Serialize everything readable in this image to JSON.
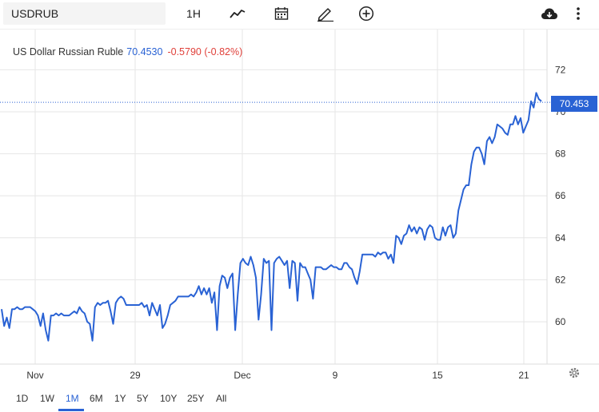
{
  "toolbar": {
    "symbol": "USDRUB",
    "interval": "1H",
    "icons": [
      "chart-type-line-icon",
      "calendar-icon",
      "pencil-draw-icon",
      "add-circle-icon",
      "cloud-download-icon",
      "more-vertical-icon"
    ]
  },
  "legend": {
    "name": "US Dollar Russian Ruble",
    "price": "70.4530",
    "change": "-0.5790 (-0.82%)"
  },
  "price_tag": "70.453",
  "ranges": [
    "1D",
    "1W",
    "1M",
    "6M",
    "1Y",
    "5Y",
    "10Y",
    "25Y",
    "All"
  ],
  "active_range": "1M",
  "colors": {
    "line": "#2962d4",
    "negative": "#e0403a",
    "grid": "#e6e6e6"
  },
  "chart_data": {
    "type": "line",
    "x_ticks": [
      "Nov",
      "29",
      "Dec",
      "9",
      "15",
      "21"
    ],
    "y_ticks": [
      60,
      62,
      64,
      66,
      68,
      70,
      72
    ],
    "ylim": [
      58.2,
      72.3
    ],
    "last_value": 70.453,
    "series": [
      {
        "values": [
          60.6,
          59.8,
          60.2,
          59.7,
          60.6,
          60.6,
          60.7,
          60.6,
          60.6,
          60.7,
          60.7,
          60.7,
          60.6,
          60.5,
          60.3,
          59.8,
          60.4,
          59.6,
          59.1,
          60.3,
          60.3,
          60.4,
          60.3,
          60.4,
          60.3,
          60.3,
          60.3,
          60.4,
          60.5,
          60.4,
          60.7,
          60.5,
          60.4,
          60.0,
          59.9,
          59.1,
          60.7,
          60.9,
          60.8,
          60.9,
          60.9,
          61.0,
          60.5,
          59.9,
          60.9,
          61.1,
          61.2,
          61.1,
          60.8,
          60.8,
          60.8,
          60.8,
          60.8,
          60.8,
          60.9,
          60.7,
          60.8,
          60.3,
          60.9,
          60.6,
          60.3,
          60.8,
          59.7,
          59.9,
          60.3,
          60.8,
          60.9,
          61.0,
          61.2,
          61.2,
          61.2,
          61.2,
          61.2,
          61.3,
          61.2,
          61.4,
          61.7,
          61.3,
          61.6,
          61.3,
          61.6,
          60.9,
          61.4,
          59.6,
          61.7,
          62.2,
          62.1,
          61.6,
          62.1,
          62.3,
          59.6,
          61.3,
          62.8,
          63.0,
          62.8,
          62.7,
          63.1,
          62.7,
          62.1,
          60.1,
          61.3,
          63.0,
          62.8,
          62.9,
          59.6,
          62.8,
          63.0,
          63.1,
          62.9,
          62.7,
          62.9,
          61.6,
          62.9,
          62.8,
          61.0,
          62.8,
          62.6,
          62.6,
          62.3,
          62.0,
          61.1,
          62.6,
          62.6,
          62.6,
          62.5,
          62.5,
          62.6,
          62.7,
          62.6,
          62.6,
          62.5,
          62.5,
          62.8,
          62.8,
          62.6,
          62.5,
          62.1,
          61.8,
          62.4,
          63.2,
          63.2,
          63.2,
          63.2,
          63.2,
          63.1,
          63.3,
          63.2,
          63.3,
          63.3,
          63.0,
          63.2,
          62.8,
          64.1,
          64.0,
          63.7,
          64.1,
          64.2,
          64.6,
          64.3,
          64.5,
          64.2,
          64.5,
          64.4,
          63.9,
          64.4,
          64.6,
          64.5,
          64.0,
          63.9,
          63.9,
          64.5,
          64.1,
          64.5,
          64.6,
          64.0,
          64.2,
          65.3,
          65.8,
          66.3,
          66.5,
          66.5,
          67.5,
          68.1,
          68.3,
          68.3,
          68.0,
          67.5,
          68.6,
          68.8,
          68.5,
          68.8,
          69.4,
          69.3,
          69.2,
          69.0,
          68.9,
          69.4,
          69.4,
          69.8,
          69.4,
          69.7,
          69.0,
          69.3,
          69.6,
          70.5,
          70.2,
          70.9,
          70.6,
          70.5
        ]
      }
    ]
  }
}
